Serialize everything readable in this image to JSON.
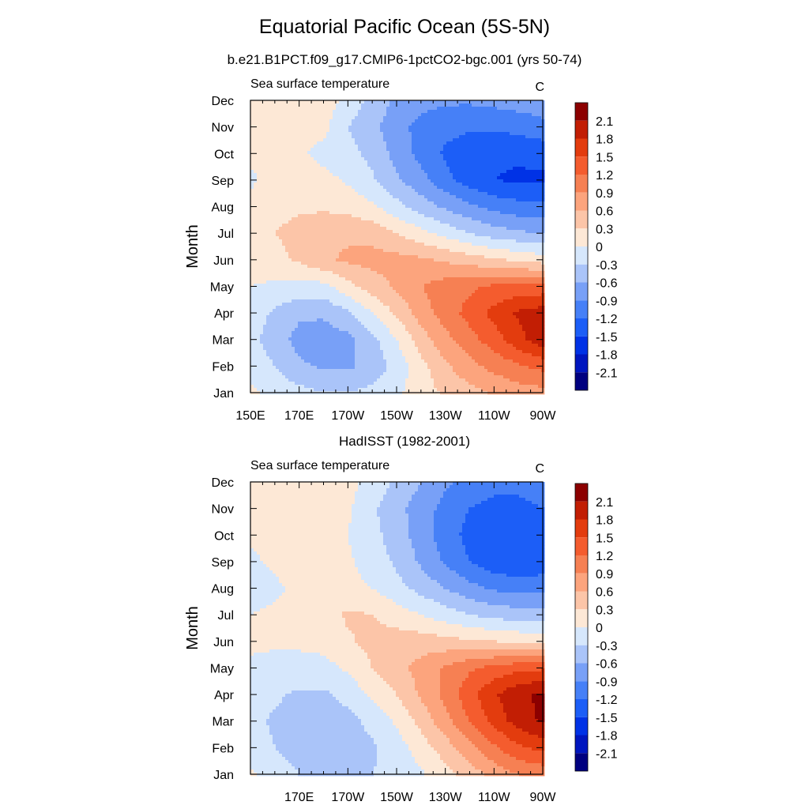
{
  "title": "Equatorial Pacific Ocean (5S-5N)",
  "colors": [
    "#000080",
    "#0016bf",
    "#0032e6",
    "#1c5ef7",
    "#4680f7",
    "#78a0f7",
    "#aac4f9",
    "#d6e7fc",
    "#fde8d6",
    "#fcc5a8",
    "#fca47d",
    "#f68053",
    "#f45c2e",
    "#e33c0e",
    "#c21e04",
    "#8c0000"
  ],
  "chart_data": [
    {
      "type": "heatmap",
      "subtitle": "b.e21.B1PCT.f09_g17.CMIP6-1pctCO2-bgc.001 (yrs 50-74)",
      "left_string": "Sea surface temperature",
      "right_string": "C",
      "ylabel": "Month",
      "x_ticks": [
        "150E",
        "170E",
        "170W",
        "150W",
        "130W",
        "110W",
        "90W"
      ],
      "y_ticks": [
        "Jan",
        "Feb",
        "Mar",
        "Apr",
        "May",
        "Jun",
        "Jul",
        "Aug",
        "Sep",
        "Oct",
        "Nov",
        "Dec"
      ],
      "xlim": [
        150,
        270
      ],
      "colorbar_labels": [
        "2.1",
        "1.8",
        "1.5",
        "1.2",
        "0.9",
        "0.6",
        "0.3",
        "0",
        "-0.3",
        "-0.6",
        "-0.9",
        "-1.2",
        "-1.5",
        "-1.8",
        "-2.1"
      ],
      "levels": [
        -2.1,
        -1.8,
        -1.5,
        -1.2,
        -0.9,
        -0.6,
        -0.3,
        0,
        0.3,
        0.6,
        0.9,
        1.2,
        1.5,
        1.8,
        2.1
      ],
      "columns": [
        {
          "lon": 150,
          "values": [
            0.05,
            -0.1,
            -0.2,
            -0.15,
            0.0,
            0.1,
            0.15,
            0.1,
            -0.05,
            0.05,
            0.1,
            0.1
          ]
        },
        {
          "lon": 160,
          "values": [
            -0.1,
            -0.3,
            -0.45,
            -0.35,
            -0.05,
            0.2,
            0.3,
            0.2,
            0.1,
            0.1,
            0.1,
            0.15
          ]
        },
        {
          "lon": 170,
          "values": [
            -0.2,
            -0.55,
            -0.7,
            -0.55,
            -0.1,
            0.35,
            0.4,
            0.25,
            0.15,
            0.05,
            0.1,
            0.15
          ]
        },
        {
          "lon": 180,
          "values": [
            -0.3,
            -0.65,
            -0.75,
            -0.55,
            -0.1,
            0.55,
            0.5,
            0.25,
            0.1,
            -0.1,
            0.1,
            0.15
          ]
        },
        {
          "lon": 190,
          "values": [
            -0.3,
            -0.65,
            -0.7,
            -0.35,
            0.2,
            0.65,
            0.55,
            0.2,
            -0.05,
            -0.2,
            -0.3,
            -0.1
          ]
        },
        {
          "lon": 200,
          "values": [
            -0.2,
            -0.5,
            -0.4,
            0.0,
            0.45,
            0.7,
            0.5,
            0.05,
            -0.25,
            -0.4,
            -0.5,
            -0.4
          ]
        },
        {
          "lon": 210,
          "values": [
            -0.05,
            -0.2,
            0.0,
            0.35,
            0.65,
            0.7,
            0.3,
            -0.2,
            -0.55,
            -0.7,
            -0.8,
            -0.65
          ]
        },
        {
          "lon": 220,
          "values": [
            0.15,
            0.2,
            0.45,
            0.75,
            0.9,
            0.65,
            0.1,
            -0.45,
            -0.8,
            -1.0,
            -1.0,
            -0.8
          ]
        },
        {
          "lon": 230,
          "values": [
            0.35,
            0.55,
            0.8,
            1.05,
            1.05,
            0.55,
            -0.1,
            -0.65,
            -1.1,
            -1.25,
            -1.1,
            -0.85
          ]
        },
        {
          "lon": 240,
          "values": [
            0.5,
            0.8,
            1.1,
            1.3,
            1.15,
            0.45,
            -0.3,
            -0.85,
            -1.35,
            -1.4,
            -1.15,
            -0.85
          ]
        },
        {
          "lon": 250,
          "values": [
            0.65,
            1.0,
            1.35,
            1.6,
            1.25,
            0.35,
            -0.45,
            -1.0,
            -1.5,
            -1.45,
            -1.15,
            -0.8
          ]
        },
        {
          "lon": 260,
          "values": [
            0.75,
            1.15,
            1.7,
            1.85,
            1.3,
            0.25,
            -0.55,
            -1.1,
            -1.55,
            -1.45,
            -1.1,
            -0.75
          ]
        },
        {
          "lon": 270,
          "values": [
            0.8,
            1.3,
            2.0,
            1.95,
            1.3,
            0.15,
            -0.6,
            -1.1,
            -1.55,
            -1.4,
            -1.0,
            -0.7
          ]
        }
      ]
    },
    {
      "type": "heatmap",
      "subtitle": "HadISST (1982-2001)",
      "left_string": "Sea surface temperature",
      "right_string": "C",
      "ylabel": "Month",
      "x_ticks": [
        "170E",
        "170W",
        "150W",
        "130W",
        "110W",
        "90W"
      ],
      "y_ticks": [
        "Jan",
        "Feb",
        "Mar",
        "Apr",
        "May",
        "Jun",
        "Jul",
        "Aug",
        "Sep",
        "Oct",
        "Nov",
        "Dec"
      ],
      "xlim": [
        150,
        270
      ],
      "colorbar_labels": [
        "2.1",
        "1.8",
        "1.5",
        "1.2",
        "0.9",
        "0.6",
        "0.3",
        "0",
        "-0.3",
        "-0.6",
        "-0.9",
        "-1.2",
        "-1.5",
        "-1.8",
        "-2.1"
      ],
      "levels": [
        -2.1,
        -1.8,
        -1.5,
        -1.2,
        -0.9,
        -0.6,
        -0.3,
        0,
        0.3,
        0.6,
        0.9,
        1.2,
        1.5,
        1.8,
        2.1
      ],
      "columns": [
        {
          "lon": 150,
          "values": [
            0.05,
            -0.15,
            -0.2,
            -0.15,
            -0.05,
            0.05,
            0.0,
            -0.1,
            -0.05,
            0.05,
            0.1,
            0.1
          ]
        },
        {
          "lon": 160,
          "values": [
            -0.15,
            -0.3,
            -0.35,
            -0.25,
            -0.1,
            0.05,
            0.05,
            -0.05,
            0.05,
            0.1,
            0.1,
            0.1
          ]
        },
        {
          "lon": 170,
          "values": [
            -0.3,
            -0.45,
            -0.45,
            -0.35,
            -0.1,
            0.05,
            0.1,
            0.05,
            0.2,
            0.15,
            0.1,
            0.1
          ]
        },
        {
          "lon": 180,
          "values": [
            -0.35,
            -0.5,
            -0.5,
            -0.35,
            -0.1,
            0.1,
            0.15,
            0.15,
            0.3,
            0.15,
            0.1,
            0.1
          ]
        },
        {
          "lon": 190,
          "values": [
            -0.35,
            -0.45,
            -0.4,
            -0.2,
            0.05,
            0.25,
            0.35,
            0.1,
            0.05,
            0.0,
            0.05,
            0.1
          ]
        },
        {
          "lon": 200,
          "values": [
            -0.3,
            -0.35,
            -0.2,
            0.05,
            0.3,
            0.4,
            0.3,
            0.0,
            -0.15,
            -0.2,
            -0.25,
            -0.1
          ]
        },
        {
          "lon": 210,
          "values": [
            -0.2,
            -0.15,
            0.05,
            0.3,
            0.5,
            0.45,
            0.15,
            -0.2,
            -0.35,
            -0.45,
            -0.5,
            -0.35
          ]
        },
        {
          "lon": 220,
          "values": [
            -0.05,
            0.15,
            0.4,
            0.65,
            0.7,
            0.45,
            0.0,
            -0.4,
            -0.65,
            -0.75,
            -0.75,
            -0.6
          ]
        },
        {
          "lon": 230,
          "values": [
            0.2,
            0.45,
            0.8,
            1.0,
            0.95,
            0.4,
            -0.15,
            -0.6,
            -0.95,
            -1.05,
            -1.0,
            -0.85
          ]
        },
        {
          "lon": 240,
          "values": [
            0.45,
            0.8,
            1.2,
            1.4,
            1.15,
            0.35,
            -0.3,
            -0.8,
            -1.2,
            -1.3,
            -1.2,
            -1.0
          ]
        },
        {
          "lon": 250,
          "values": [
            0.7,
            1.15,
            1.6,
            1.75,
            1.3,
            0.3,
            -0.4,
            -0.95,
            -1.4,
            -1.45,
            -1.3,
            -1.1
          ]
        },
        {
          "lon": 260,
          "values": [
            0.9,
            1.45,
            1.95,
            2.05,
            1.4,
            0.25,
            -0.45,
            -1.0,
            -1.45,
            -1.45,
            -1.3,
            -1.1
          ]
        },
        {
          "lon": 270,
          "values": [
            1.0,
            1.6,
            2.15,
            2.15,
            1.45,
            0.2,
            -0.5,
            -1.0,
            -1.4,
            -1.35,
            -1.2,
            -1.0
          ]
        }
      ]
    }
  ]
}
